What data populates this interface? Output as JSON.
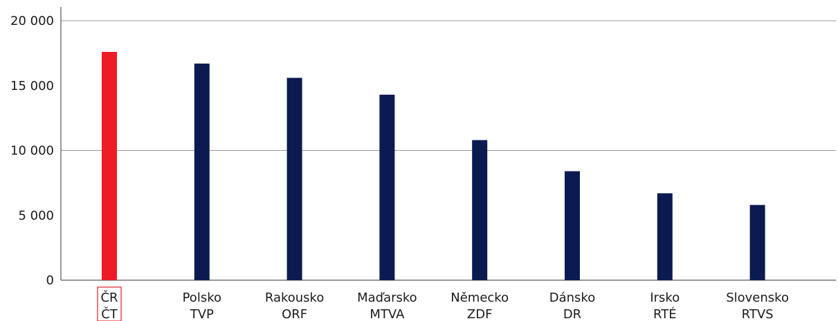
{
  "chart_data": {
    "type": "bar",
    "categories": [
      [
        "ČR",
        "ČT"
      ],
      [
        "Polsko",
        "TVP"
      ],
      [
        "Rakousko",
        "ORF"
      ],
      [
        "Maďarsko",
        "MTVA"
      ],
      [
        "Německo",
        "ZDF"
      ],
      [
        "Dánsko",
        "DR"
      ],
      [
        "Irsko",
        "RTÉ"
      ],
      [
        "Slovensko",
        "RTVS"
      ]
    ],
    "values": [
      17600,
      16700,
      15600,
      14300,
      10800,
      8400,
      6700,
      5800
    ],
    "highlight_index": 0,
    "colors": {
      "highlight": "#ee1c25",
      "default": "#0c1a52"
    },
    "ylim": [
      0,
      20000
    ],
    "yticks": [
      0,
      5000,
      10000,
      15000,
      20000
    ],
    "ytick_labels": [
      "0",
      "5 000",
      "10 000",
      "15 000",
      "20 000"
    ],
    "gridlines": [
      10000,
      20000
    ],
    "title": "",
    "xlabel": "",
    "ylabel": ""
  }
}
